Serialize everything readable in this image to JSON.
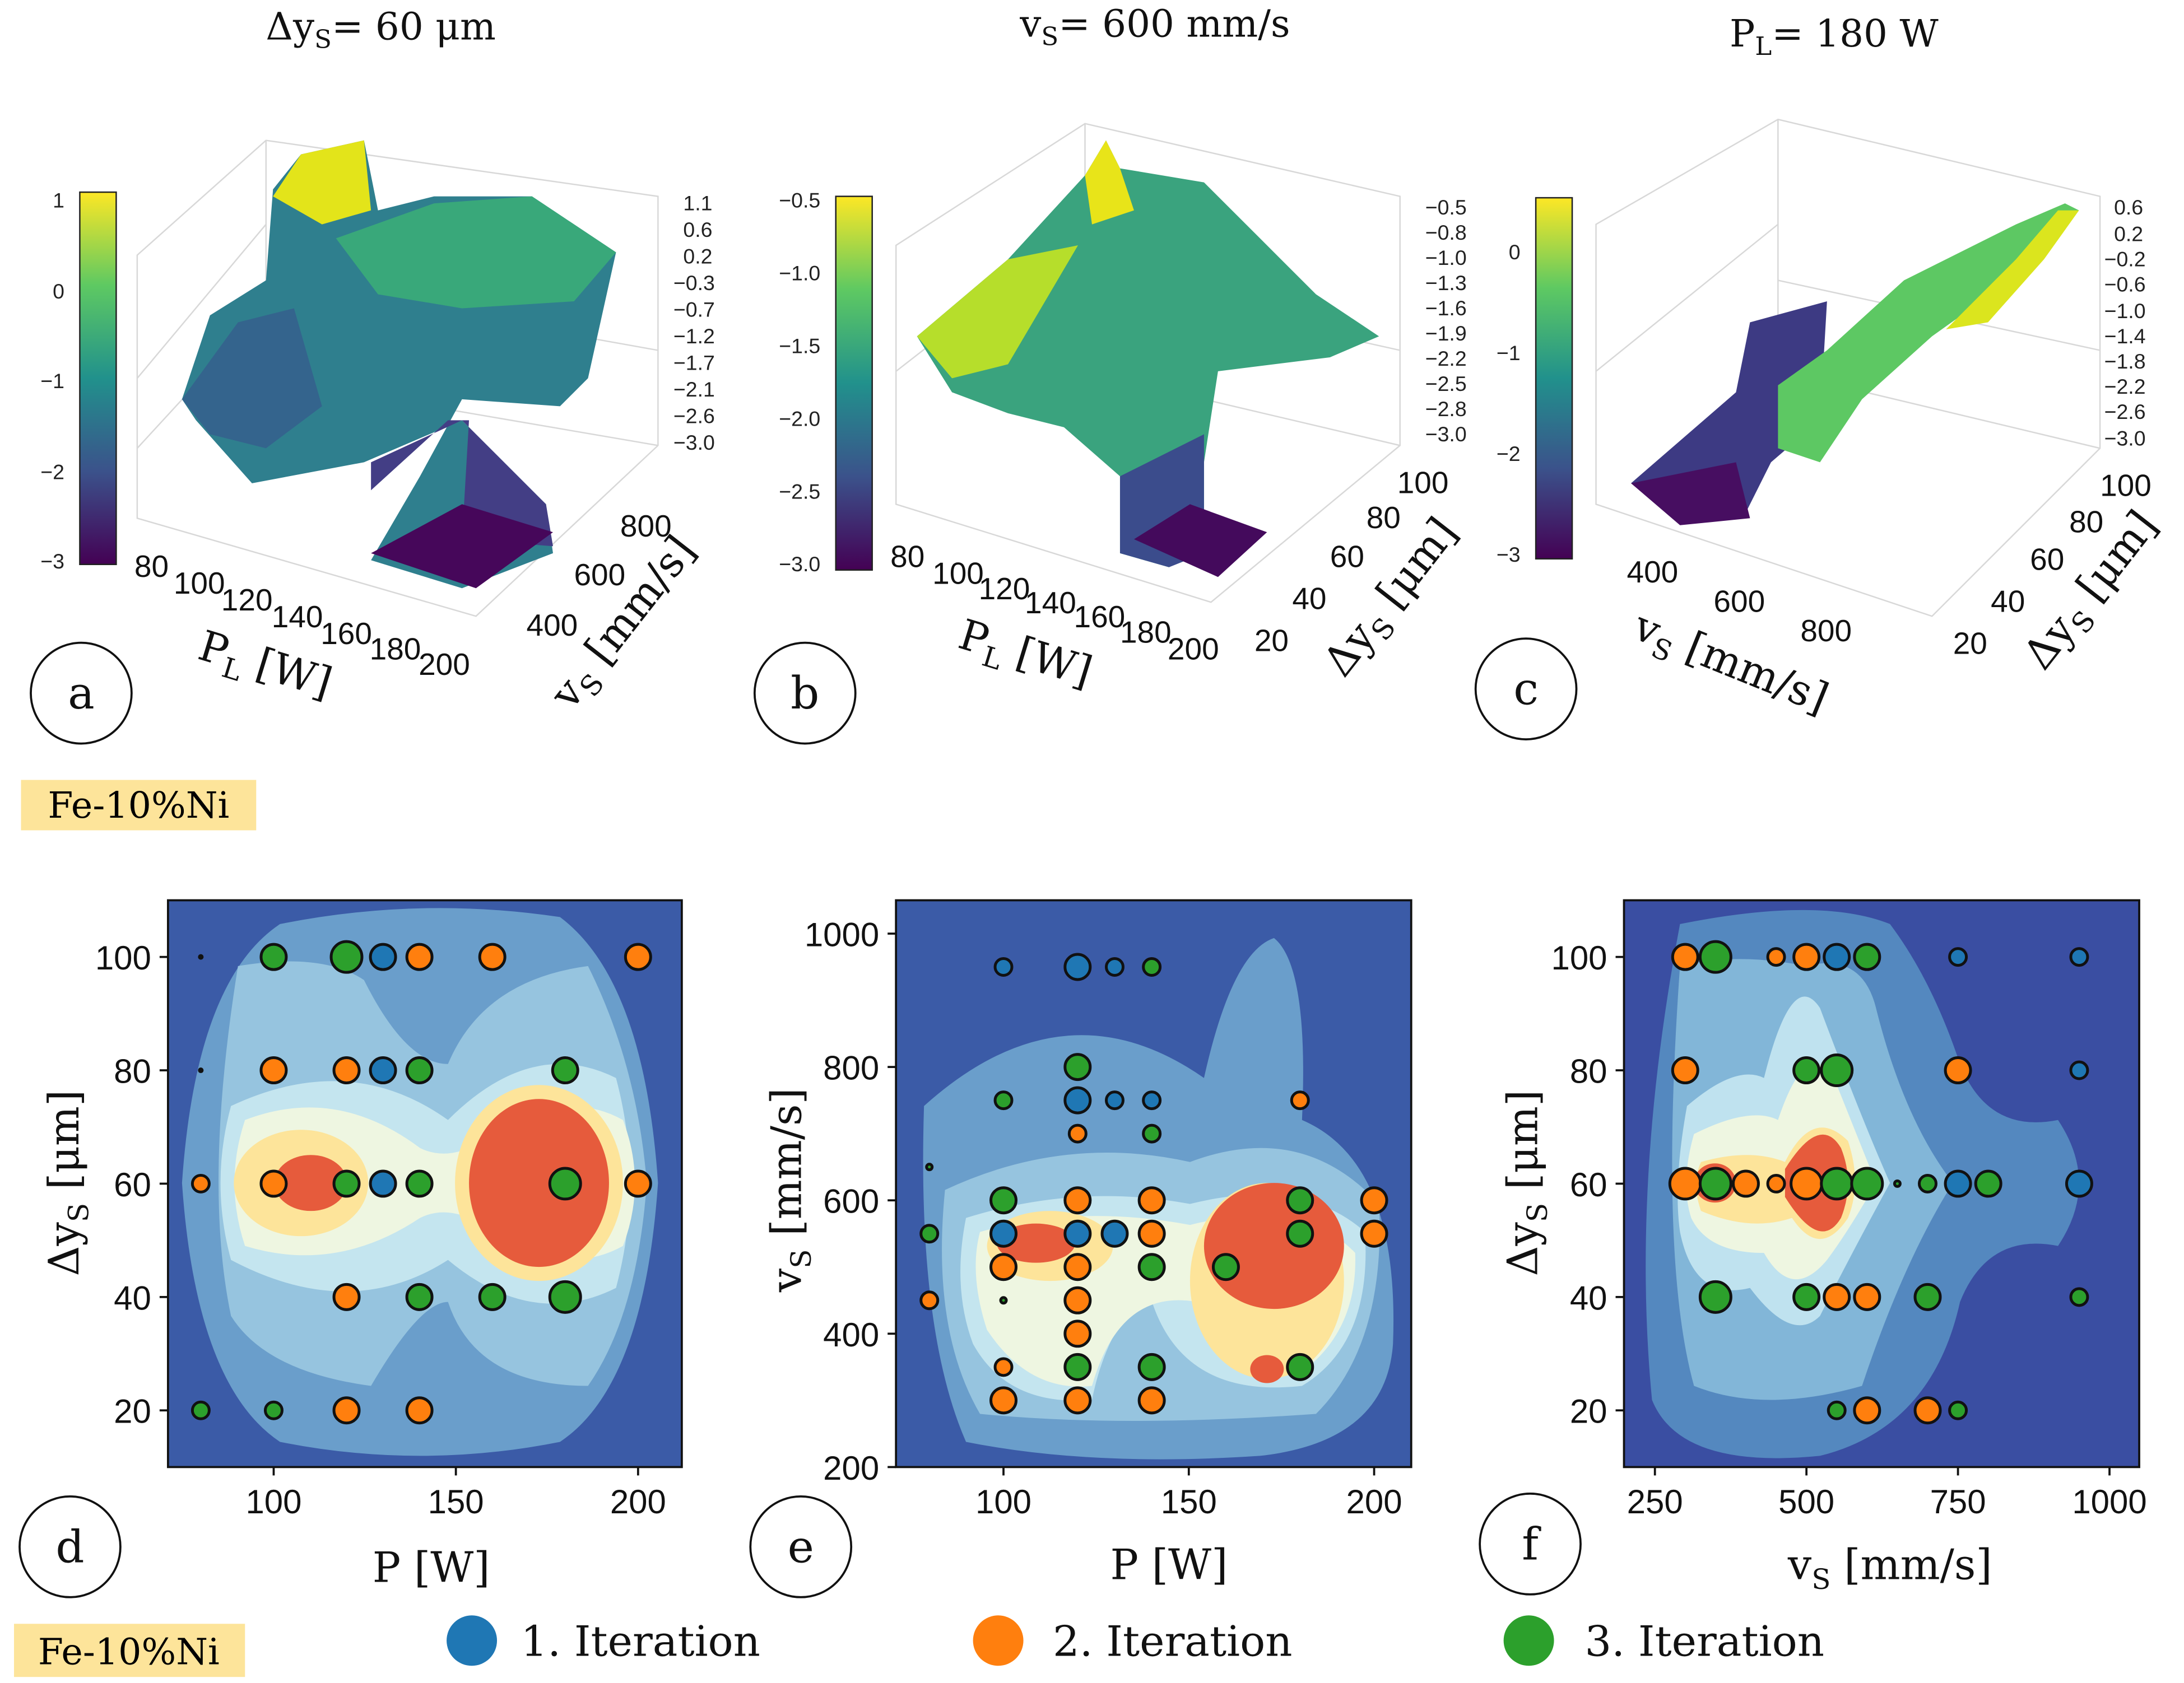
{
  "top_titles": [
    {
      "pre": "Δy",
      "sub": "S",
      "post": "= 60 μm"
    },
    {
      "pre": "v",
      "sub": "S",
      "post": "= 600 mm/s"
    },
    {
      "pre": "P",
      "sub": "L",
      "post": "= 180 W"
    }
  ],
  "panel_labels": [
    "a",
    "b",
    "c",
    "d",
    "e",
    "f"
  ],
  "material_tags": [
    "Fe-10%Ni",
    "Fe-10%Ni"
  ],
  "legend": [
    {
      "label": "1. Iteration",
      "color": "#1f77b4"
    },
    {
      "label": "2. Iteration",
      "color": "#ff7f0e"
    },
    {
      "label": "3. Iteration",
      "color": "#2ca02c"
    }
  ],
  "chart_data": [
    {
      "type": "surface3d",
      "panel": "a",
      "fixed": "Δy_S = 60 μm",
      "colorbar_ticks": [
        "1",
        "0",
        "−1",
        "−2",
        "−3"
      ],
      "z_ticks": [
        "1.1",
        "0.6",
        "0.2",
        "−0.3",
        "−0.7",
        "−1.2",
        "−1.7",
        "−2.1",
        "−2.6",
        "−3.0"
      ],
      "x_ticks": [
        "80",
        "100",
        "120",
        "140",
        "160",
        "180",
        "200"
      ],
      "y_ticks": [
        "400",
        "600",
        "800"
      ],
      "xlabel": {
        "pre": "P",
        "sub": "L",
        "post": " [W]"
      },
      "ylabel": {
        "pre": "v",
        "sub": "S",
        "post": " [mm/s]"
      }
    },
    {
      "type": "surface3d",
      "panel": "b",
      "fixed": "v_S = 600 mm/s",
      "colorbar_ticks": [
        "−0.5",
        "−1.0",
        "−1.5",
        "−2.0",
        "−2.5",
        "−3.0"
      ],
      "z_ticks": [
        "−0.5",
        "−0.8",
        "−1.0",
        "−1.3",
        "−1.6",
        "−1.9",
        "−2.2",
        "−2.5",
        "−2.8",
        "−3.0"
      ],
      "x_ticks": [
        "80",
        "100",
        "120",
        "140",
        "160",
        "180",
        "200"
      ],
      "y_ticks": [
        "20",
        "40",
        "60",
        "80",
        "100"
      ],
      "xlabel": {
        "pre": "P",
        "sub": "L",
        "post": " [W]"
      },
      "ylabel": {
        "pre": "Δy",
        "sub": "S",
        "post": " [μm]"
      }
    },
    {
      "type": "surface3d",
      "panel": "c",
      "fixed": "P_L = 180 W",
      "colorbar_ticks": [
        "0",
        "−1",
        "−2",
        "−3"
      ],
      "z_ticks": [
        "0.6",
        "0.2",
        "−0.2",
        "−0.6",
        "−1.0",
        "−1.4",
        "−1.8",
        "−2.2",
        "−2.6",
        "−3.0"
      ],
      "x_ticks": [
        "400",
        "600",
        "800"
      ],
      "y_ticks": [
        "20",
        "40",
        "60",
        "80",
        "100"
      ],
      "xlabel": {
        "pre": "v",
        "sub": "S",
        "post": " [mm/s]"
      },
      "ylabel": {
        "pre": "Δy",
        "sub": "S",
        "post": " [μm]"
      }
    },
    {
      "type": "scatter",
      "panel": "d",
      "xlabel": "P [W]",
      "ylabel": {
        "pre": "Δy",
        "sub": "S",
        "post": " [μm]"
      },
      "xlim": [
        71,
        212
      ],
      "ylim": [
        10,
        110
      ],
      "x_ticks": [
        100,
        150,
        200
      ],
      "y_ticks": [
        20,
        40,
        60,
        80,
        100
      ],
      "points": [
        [
          80,
          100,
          0,
          0
        ],
        [
          100,
          100,
          3,
          2
        ],
        [
          120,
          100,
          3,
          3
        ],
        [
          130,
          100,
          1,
          2
        ],
        [
          140,
          100,
          2,
          2
        ],
        [
          160,
          100,
          2,
          2
        ],
        [
          200,
          100,
          2,
          2
        ],
        [
          80,
          80,
          0,
          0
        ],
        [
          100,
          80,
          2,
          2
        ],
        [
          120,
          80,
          2,
          2
        ],
        [
          130,
          80,
          1,
          2
        ],
        [
          140,
          80,
          3,
          2
        ],
        [
          180,
          80,
          3,
          2
        ],
        [
          80,
          60,
          2,
          1
        ],
        [
          100,
          60,
          2,
          2
        ],
        [
          120,
          60,
          3,
          2
        ],
        [
          130,
          60,
          1,
          2
        ],
        [
          140,
          60,
          3,
          2
        ],
        [
          180,
          60,
          3,
          3
        ],
        [
          200,
          60,
          2,
          2
        ],
        [
          120,
          40,
          2,
          2
        ],
        [
          140,
          40,
          3,
          2
        ],
        [
          160,
          40,
          3,
          2
        ],
        [
          180,
          40,
          3,
          3
        ],
        [
          80,
          20,
          3,
          1
        ],
        [
          100,
          20,
          3,
          1
        ],
        [
          120,
          20,
          2,
          2
        ],
        [
          140,
          20,
          2,
          2
        ]
      ]
    },
    {
      "type": "scatter",
      "panel": "e",
      "xlabel": "P [W]",
      "ylabel": {
        "pre": "v",
        "sub": "S",
        "post": " [mm/s]"
      },
      "xlim": [
        71,
        210
      ],
      "ylim": [
        200,
        1050
      ],
      "x_ticks": [
        100,
        150,
        200
      ],
      "y_ticks": [
        200,
        400,
        600,
        800,
        1000
      ],
      "points": [
        [
          100,
          950,
          1,
          1
        ],
        [
          120,
          950,
          1,
          2
        ],
        [
          130,
          950,
          1,
          1
        ],
        [
          140,
          950,
          3,
          1
        ],
        [
          120,
          800,
          3,
          2
        ],
        [
          100,
          750,
          3,
          1
        ],
        [
          120,
          750,
          1,
          2
        ],
        [
          130,
          750,
          1,
          1
        ],
        [
          140,
          750,
          1,
          1
        ],
        [
          180,
          750,
          2,
          1
        ],
        [
          120,
          700,
          2,
          1
        ],
        [
          140,
          700,
          3,
          1
        ],
        [
          80,
          650,
          3,
          0
        ],
        [
          100,
          600,
          3,
          2
        ],
        [
          120,
          600,
          2,
          2
        ],
        [
          140,
          600,
          2,
          2
        ],
        [
          180,
          600,
          3,
          2
        ],
        [
          200,
          600,
          2,
          2
        ],
        [
          80,
          550,
          3,
          1
        ],
        [
          100,
          550,
          1,
          2
        ],
        [
          120,
          550,
          1,
          2
        ],
        [
          130,
          550,
          1,
          2
        ],
        [
          140,
          550,
          2,
          2
        ],
        [
          180,
          550,
          3,
          2
        ],
        [
          200,
          550,
          2,
          2
        ],
        [
          100,
          500,
          2,
          2
        ],
        [
          120,
          500,
          2,
          2
        ],
        [
          140,
          500,
          3,
          2
        ],
        [
          160,
          500,
          3,
          2
        ],
        [
          80,
          450,
          2,
          1
        ],
        [
          100,
          450,
          3,
          0
        ],
        [
          120,
          450,
          2,
          2
        ],
        [
          120,
          400,
          2,
          2
        ],
        [
          100,
          350,
          2,
          1
        ],
        [
          120,
          350,
          3,
          2
        ],
        [
          140,
          350,
          3,
          2
        ],
        [
          180,
          350,
          3,
          2
        ],
        [
          100,
          300,
          2,
          2
        ],
        [
          120,
          300,
          2,
          2
        ],
        [
          140,
          300,
          2,
          2
        ]
      ]
    },
    {
      "type": "scatter",
      "panel": "f",
      "xlabel": {
        "pre": "v",
        "sub": "S",
        "post": " [mm/s]"
      },
      "ylabel": {
        "pre": "Δy",
        "sub": "S",
        "post": " [μm]"
      },
      "xlim": [
        199,
        1049
      ],
      "ylim": [
        10,
        110
      ],
      "x_ticks": [
        250,
        500,
        750,
        1000
      ],
      "y_ticks": [
        20,
        40,
        60,
        80,
        100
      ],
      "points": [
        [
          300,
          100,
          2,
          2
        ],
        [
          350,
          100,
          3,
          3
        ],
        [
          450,
          100,
          2,
          1
        ],
        [
          500,
          100,
          2,
          2
        ],
        [
          550,
          100,
          1,
          2
        ],
        [
          600,
          100,
          3,
          2
        ],
        [
          750,
          100,
          1,
          1
        ],
        [
          950,
          100,
          1,
          1
        ],
        [
          300,
          80,
          2,
          2
        ],
        [
          500,
          80,
          3,
          2
        ],
        [
          550,
          80,
          3,
          3
        ],
        [
          750,
          80,
          2,
          2
        ],
        [
          950,
          80,
          1,
          1
        ],
        [
          300,
          60,
          2,
          3
        ],
        [
          350,
          60,
          3,
          3
        ],
        [
          400,
          60,
          2,
          2
        ],
        [
          450,
          60,
          2,
          1
        ],
        [
          500,
          60,
          2,
          3
        ],
        [
          550,
          60,
          3,
          3
        ],
        [
          600,
          60,
          3,
          3
        ],
        [
          650,
          60,
          3,
          0
        ],
        [
          700,
          60,
          3,
          1
        ],
        [
          750,
          60,
          1,
          2
        ],
        [
          800,
          60,
          3,
          2
        ],
        [
          950,
          60,
          1,
          2
        ],
        [
          350,
          40,
          3,
          3
        ],
        [
          500,
          40,
          3,
          2
        ],
        [
          550,
          40,
          2,
          2
        ],
        [
          600,
          40,
          2,
          2
        ],
        [
          700,
          40,
          3,
          2
        ],
        [
          950,
          40,
          3,
          1
        ],
        [
          550,
          20,
          3,
          1
        ],
        [
          600,
          20,
          2,
          2
        ],
        [
          700,
          20,
          2,
          2
        ],
        [
          750,
          20,
          3,
          1
        ]
      ]
    }
  ]
}
